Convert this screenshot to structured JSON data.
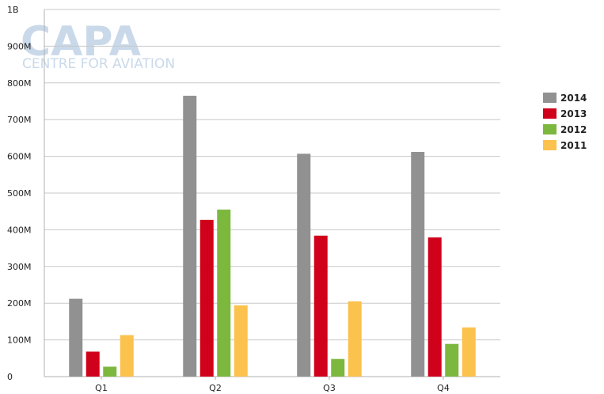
{
  "watermark": {
    "logo_text": "CAPA",
    "logo_subtext": "CENTRE FOR AVIATION"
  },
  "colors": {
    "2014": "#919191",
    "2013": "#d0021b",
    "2012": "#7cb83e",
    "2011": "#fcc24e",
    "grid": "#c8c8c8"
  },
  "chart_data": {
    "type": "bar",
    "categories": [
      "Q1",
      "Q2",
      "Q3",
      "Q4"
    ],
    "series": [
      {
        "name": "2014",
        "values": [
          212000000,
          765000000,
          607000000,
          612000000
        ]
      },
      {
        "name": "2013",
        "values": [
          68000000,
          427000000,
          384000000,
          379000000
        ]
      },
      {
        "name": "2012",
        "values": [
          27000000,
          455000000,
          48000000,
          89000000
        ]
      },
      {
        "name": "2011",
        "values": [
          113000000,
          194000000,
          205000000,
          134000000
        ]
      }
    ],
    "yticks": [
      "0",
      "100M",
      "200M",
      "300M",
      "400M",
      "500M",
      "600M",
      "700M",
      "800M",
      "900M",
      "1B"
    ],
    "ylim": [
      0,
      1000000000
    ],
    "grid": true,
    "legend_position": "right",
    "title": "",
    "xlabel": "",
    "ylabel": ""
  }
}
